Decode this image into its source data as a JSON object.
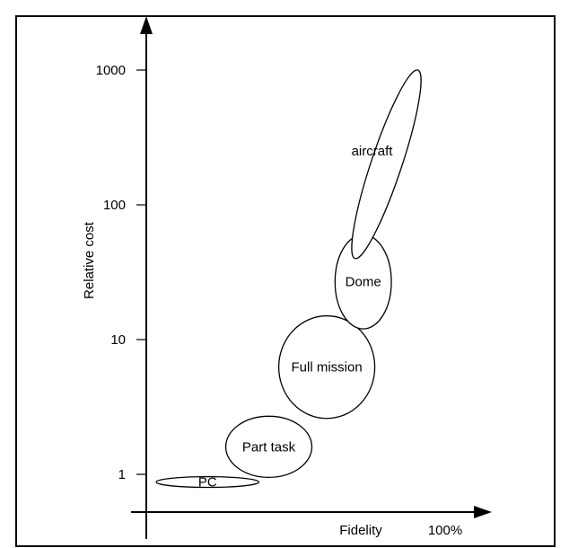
{
  "chart_data": {
    "type": "scatter",
    "title": "",
    "xlabel": "Fidelity",
    "ylabel": "Relative cost",
    "x_end_label": "100%",
    "y_scale": "log",
    "y_ticks": [
      {
        "value": 1,
        "label": "1"
      },
      {
        "value": 10,
        "label": "10"
      },
      {
        "value": 100,
        "label": "100"
      },
      {
        "value": 1000,
        "label": "1000"
      }
    ],
    "ylim": [
      0.55,
      2000
    ],
    "xlim": [
      0,
      100
    ],
    "grid": false,
    "series": [
      {
        "name": "PC",
        "x_range": [
          3,
          34
        ],
        "y_range": [
          0.8,
          0.96
        ]
      },
      {
        "name": "Part task",
        "x_range": [
          24,
          50
        ],
        "y_range": [
          0.95,
          2.7
        ]
      },
      {
        "name": "Full mission",
        "x_range": [
          40,
          69
        ],
        "y_range": [
          2.6,
          15
        ]
      },
      {
        "name": "Dome",
        "x_range": [
          57,
          74
        ],
        "y_range": [
          12,
          60
        ]
      },
      {
        "name": "aircraft",
        "x_range": [
          63,
          82
        ],
        "y_range": [
          40,
          1000
        ]
      }
    ]
  }
}
